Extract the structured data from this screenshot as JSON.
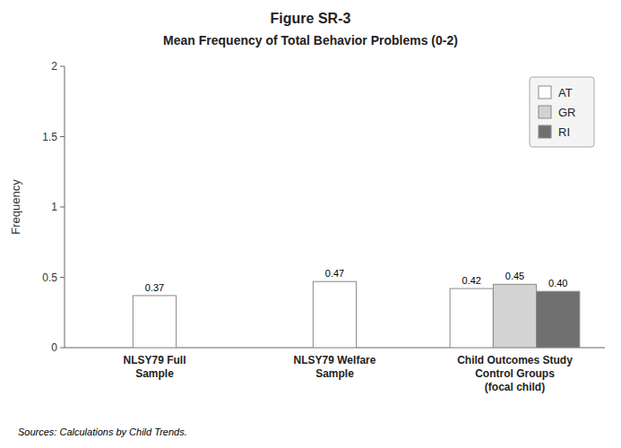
{
  "chart_data": {
    "type": "bar",
    "title": "Figure SR-3",
    "subtitle": "Mean Frequency of Total Behavior Problems (0-2)",
    "y_label": "Frequency",
    "source": "Sources:  Calculations by Child Trends.",
    "categories": [
      "NLSY79 Full\nSample",
      "NLSY79 Welfare\nSample",
      "Child Outcomes Study\nControl Groups\n(focal child)"
    ],
    "series": [
      {
        "name": "AT",
        "color": "#ffffff",
        "values": [
          0.37,
          0.47,
          0.42
        ],
        "value_labels": [
          "0.37",
          "0.47",
          "0.42"
        ]
      },
      {
        "name": "GR",
        "color": "#d3d3d3",
        "values": [
          null,
          null,
          0.45
        ],
        "value_labels": [
          null,
          null,
          "0.45"
        ]
      },
      {
        "name": "RI",
        "color": "#707070",
        "values": [
          null,
          null,
          0.4
        ],
        "value_labels": [
          null,
          null,
          "0.40"
        ]
      }
    ],
    "ylim": [
      0,
      2
    ],
    "yticks": [
      0,
      0.5,
      1,
      1.5,
      2
    ],
    "data_labels": true,
    "legend": "upper right",
    "grid": false
  }
}
